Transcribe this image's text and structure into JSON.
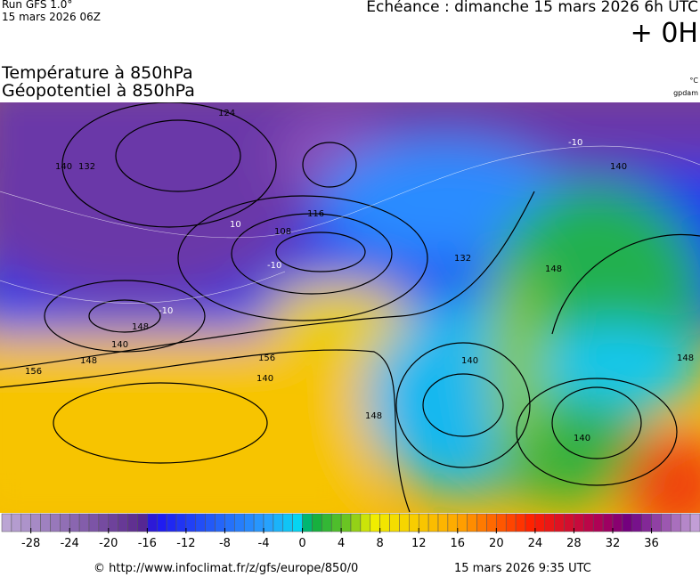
{
  "header": {
    "run": "Run GFS 1.0°",
    "run_date": "15 mars 2026 06Z",
    "valid": "Echéance : dimanche 15 mars 2026 6h UTC",
    "lead": "+ 0H",
    "title_1": "Température à 850hPa",
    "title_2": "Géopotentiel à 850hPa",
    "unit_1": "°C",
    "unit_2": "gpdam"
  },
  "map": {
    "contour_labels": [
      124,
      132,
      140,
      116,
      108,
      132,
      140,
      148,
      156,
      156,
      148,
      140,
      148,
      140,
      140,
      148,
      148,
      140,
      -10,
      -10,
      10,
      -10
    ]
  },
  "colorbar": {
    "range": [
      -31,
      41
    ],
    "ticks": [
      -28,
      -24,
      -20,
      -16,
      -12,
      -8,
      -4,
      0,
      4,
      8,
      12,
      16,
      20,
      24,
      28,
      32,
      36
    ]
  },
  "footer": {
    "url": "© http://www.infoclimat.fr/z/gfs/europe/850/0",
    "generated": "15 mars 2026  9:35 UTC"
  }
}
